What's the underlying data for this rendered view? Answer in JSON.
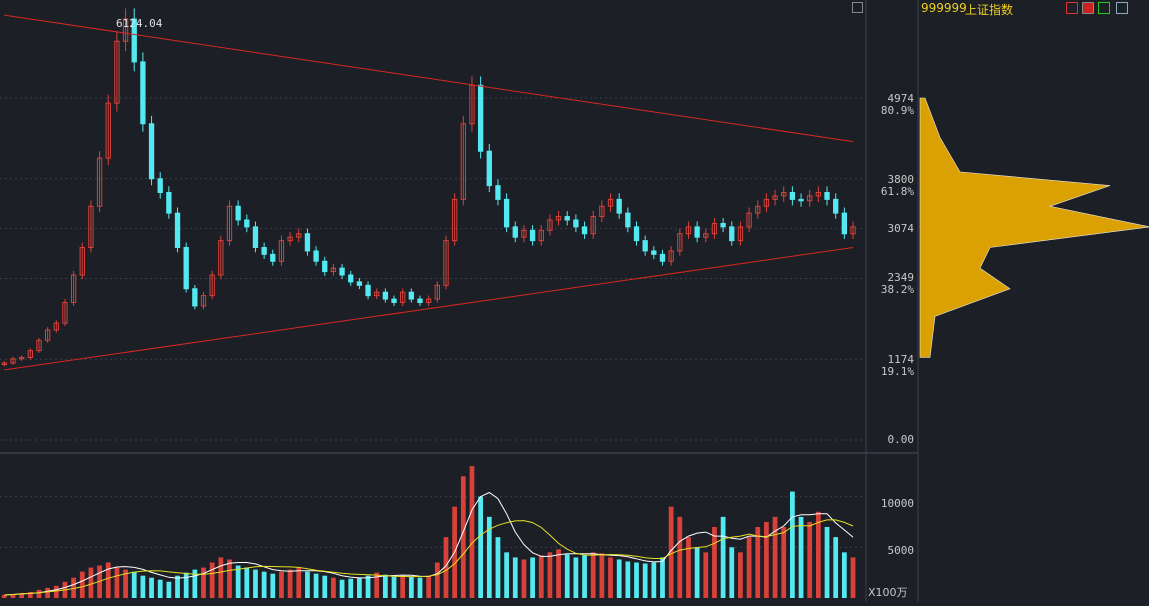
{
  "header": {
    "code": "999999",
    "name": "上证指数",
    "peak_label": "6124.04"
  },
  "price_axis": [
    {
      "value": "4974",
      "pct": "80.9%"
    },
    {
      "value": "3800",
      "pct": "61.8%"
    },
    {
      "value": "3074",
      "pct": ""
    },
    {
      "value": "2349",
      "pct": "38.2%"
    },
    {
      "value": "1174",
      "pct": "19.1%"
    },
    {
      "value": "0.00",
      "pct": ""
    }
  ],
  "volume_axis": [
    "10000",
    "5000"
  ],
  "volume_unit": "X100万",
  "colors": {
    "up": "#d8413a",
    "down": "#54e8f0",
    "trend_line": "#d8281e",
    "grid": "#3a3f4a",
    "ma_white": "#ffffff",
    "ma_yellow": "#e8e020"
  },
  "chart_data": {
    "type": "candlestick",
    "price_series": [
      1120,
      1180,
      1200,
      1300,
      1450,
      1600,
      1700,
      2000,
      2400,
      2800,
      3400,
      4100,
      4900,
      5800,
      6124,
      5500,
      4600,
      3800,
      3600,
      3300,
      2800,
      2200,
      1950,
      2100,
      2400,
      2900,
      3400,
      3200,
      3100,
      2800,
      2700,
      2600,
      2900,
      2950,
      3000,
      2750,
      2600,
      2450,
      2500,
      2400,
      2300,
      2250,
      2100,
      2150,
      2050,
      2000,
      2150,
      2050,
      2000,
      2050,
      2250,
      2900,
      3500,
      4600,
      5160,
      4200,
      3700,
      3500,
      3100,
      2950,
      3050,
      2900,
      3050,
      3200,
      3250,
      3200,
      3100,
      3000,
      3250,
      3400,
      3500,
      3300,
      3100,
      2900,
      2750,
      2700,
      2600,
      2750,
      3000,
      3100,
      2950,
      3000,
      3150,
      3100,
      2900,
      3100,
      3300,
      3400,
      3500,
      3550,
      3600,
      3500,
      3480,
      3550,
      3600,
      3500,
      3300,
      3000,
      3100
    ],
    "price_range": [
      0,
      6400
    ],
    "volume_series": [
      300,
      400,
      500,
      600,
      800,
      1000,
      1200,
      1600,
      2000,
      2600,
      3000,
      3200,
      3500,
      3000,
      2800,
      2600,
      2200,
      2000,
      1800,
      1600,
      2200,
      2500,
      2800,
      3000,
      3500,
      4000,
      3800,
      3200,
      3000,
      2800,
      2600,
      2400,
      2600,
      2800,
      3000,
      2600,
      2400,
      2200,
      2000,
      1800,
      1900,
      2000,
      2200,
      2500,
      2300,
      2100,
      2200,
      2100,
      2000,
      2200,
      3500,
      6000,
      9000,
      12000,
      13000,
      10000,
      8000,
      6000,
      4500,
      4000,
      3800,
      4000,
      4200,
      4500,
      4800,
      4300,
      4000,
      4200,
      4500,
      4400,
      4000,
      3800,
      3600,
      3500,
      3400,
      3500,
      4000,
      9000,
      8000,
      6000,
      5000,
      4500,
      7000,
      8000,
      5000,
      4500,
      6000,
      7000,
      7500,
      8000,
      7000,
      10500,
      8000,
      7500,
      8500,
      7000,
      6000,
      4500,
      4000
    ],
    "volume_range": [
      0,
      14000
    ],
    "trend_lines": [
      {
        "from": [
          0,
          6180
        ],
        "to": [
          98,
          4340
        ]
      },
      {
        "from": [
          0,
          1020
        ],
        "to": [
          98,
          2800
        ]
      }
    ],
    "volume_profile": [
      {
        "price": 4974,
        "width": 5
      },
      {
        "price": 4400,
        "width": 20
      },
      {
        "price": 3900,
        "width": 40
      },
      {
        "price": 3700,
        "width": 190
      },
      {
        "price": 3400,
        "width": 130
      },
      {
        "price": 3100,
        "width": 230
      },
      {
        "price": 2800,
        "width": 70
      },
      {
        "price": 2500,
        "width": 60
      },
      {
        "price": 2200,
        "width": 90
      },
      {
        "price": 1800,
        "width": 15
      },
      {
        "price": 1200,
        "width": 10
      }
    ]
  }
}
